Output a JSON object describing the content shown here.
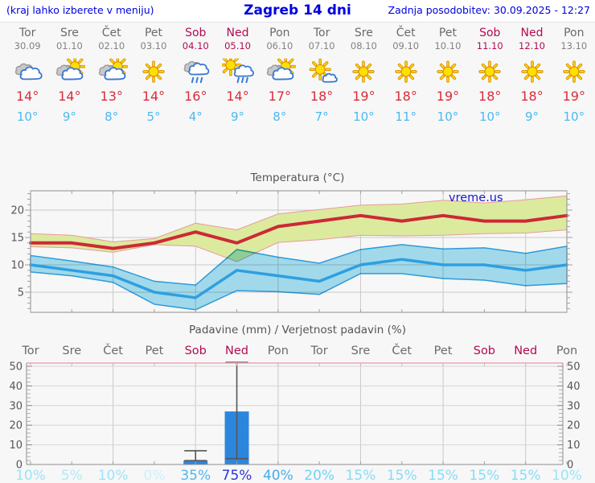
{
  "header": {
    "left_note": "(kraj lahko izberete v meniju)",
    "title": "Zagreb 14 dni",
    "updated": "Zadnja posodobitev: 30.09.2025 - 12:27"
  },
  "days": [
    {
      "name": "Tor",
      "date": "30.09",
      "weekend": false,
      "icon": "cloudy",
      "tmax_label": "14°",
      "tmin_label": "10°",
      "precip_pct_label": "10%"
    },
    {
      "name": "Sre",
      "date": "01.10",
      "weekend": false,
      "icon": "partly-cloudy",
      "tmax_label": "14°",
      "tmin_label": "9°",
      "precip_pct_label": "5%"
    },
    {
      "name": "Čet",
      "date": "02.10",
      "weekend": false,
      "icon": "partly-cloudy",
      "tmax_label": "13°",
      "tmin_label": "8°",
      "precip_pct_label": "10%"
    },
    {
      "name": "Pet",
      "date": "03.10",
      "weekend": false,
      "icon": "sunny",
      "tmax_label": "14°",
      "tmin_label": "5°",
      "precip_pct_label": "0%"
    },
    {
      "name": "Sob",
      "date": "04.10",
      "weekend": true,
      "icon": "rain",
      "tmax_label": "16°",
      "tmin_label": "4°",
      "precip_pct_label": "35%"
    },
    {
      "name": "Ned",
      "date": "05.10",
      "weekend": true,
      "icon": "sun-rain",
      "tmax_label": "14°",
      "tmin_label": "9°",
      "precip_pct_label": "75%"
    },
    {
      "name": "Pon",
      "date": "06.10",
      "weekend": false,
      "icon": "partly-cloudy",
      "tmax_label": "17°",
      "tmin_label": "8°",
      "precip_pct_label": "40%"
    },
    {
      "name": "Tor",
      "date": "07.10",
      "weekend": false,
      "icon": "mostly-sunny",
      "tmax_label": "18°",
      "tmin_label": "7°",
      "precip_pct_label": "20%"
    },
    {
      "name": "Sre",
      "date": "08.10",
      "weekend": false,
      "icon": "sunny",
      "tmax_label": "19°",
      "tmin_label": "10°",
      "precip_pct_label": "15%"
    },
    {
      "name": "Čet",
      "date": "09.10",
      "weekend": false,
      "icon": "sunny",
      "tmax_label": "18°",
      "tmin_label": "11°",
      "precip_pct_label": "15%"
    },
    {
      "name": "Pet",
      "date": "10.10",
      "weekend": false,
      "icon": "sunny",
      "tmax_label": "19°",
      "tmin_label": "10°",
      "precip_pct_label": "15%"
    },
    {
      "name": "Sob",
      "date": "11.10",
      "weekend": true,
      "icon": "sunny",
      "tmax_label": "18°",
      "tmin_label": "10°",
      "precip_pct_label": "15%"
    },
    {
      "name": "Ned",
      "date": "12.10",
      "weekend": true,
      "icon": "sunny",
      "tmax_label": "18°",
      "tmin_label": "9°",
      "precip_pct_label": "15%"
    },
    {
      "name": "Pon",
      "date": "13.10",
      "weekend": false,
      "icon": "sunny",
      "tmax_label": "19°",
      "tmin_label": "10°",
      "precip_pct_label": "10%"
    }
  ],
  "chart_data": [
    {
      "type": "line",
      "title": "Temperatura (°C)",
      "watermark": "vreme.us",
      "categories": [
        "30.09",
        "01.10",
        "02.10",
        "03.10",
        "04.10",
        "05.10",
        "06.10",
        "07.10",
        "08.10",
        "09.10",
        "10.10",
        "11.10",
        "12.10",
        "13.10"
      ],
      "series": [
        {
          "name": "max-temp",
          "values": [
            14,
            14,
            13,
            14,
            16,
            14,
            17,
            18,
            19,
            18,
            19,
            18,
            18,
            19
          ]
        },
        {
          "name": "max-temp-range-high",
          "values": [
            15.7,
            15.4,
            14.2,
            14.8,
            17.6,
            16.4,
            19.3,
            20.1,
            20.9,
            21.1,
            21.8,
            21.3,
            21.9,
            22.6
          ]
        },
        {
          "name": "max-temp-range-low",
          "values": [
            13.3,
            13.1,
            12.3,
            13.7,
            13.4,
            10.6,
            14.1,
            14.6,
            15.4,
            15.3,
            15.4,
            15.7,
            15.8,
            16.4
          ]
        },
        {
          "name": "min-temp",
          "values": [
            10,
            9,
            8,
            5,
            4,
            9,
            8,
            7,
            10,
            11,
            10,
            10,
            9,
            10
          ]
        },
        {
          "name": "min-temp-range-high",
          "values": [
            11.7,
            10.7,
            9.6,
            7.0,
            6.3,
            12.8,
            11.4,
            10.3,
            12.8,
            13.7,
            12.9,
            13.1,
            12.1,
            13.4
          ]
        },
        {
          "name": "min-temp-range-low",
          "values": [
            8.7,
            8.0,
            6.8,
            2.8,
            1.8,
            5.3,
            5.1,
            4.6,
            8.4,
            8.4,
            7.5,
            7.2,
            6.2,
            6.6
          ]
        }
      ],
      "yticks": [
        5,
        10,
        15,
        20
      ],
      "ylim": [
        1.3,
        23.5
      ],
      "grid": true,
      "legend": "none"
    },
    {
      "type": "bar",
      "title": "Padavine (mm) / Verjetnost padavin (%)",
      "categories": [
        "Tor",
        "Sre",
        "Čet",
        "Pet",
        "Sob",
        "Ned",
        "Pon",
        "Tor",
        "Sre",
        "Čet",
        "Pet",
        "Sob",
        "Ned",
        "Pon"
      ],
      "weekend_indices": [
        4,
        5,
        11,
        12
      ],
      "values": [
        0,
        0,
        0,
        0,
        2,
        27,
        0,
        0,
        0,
        0,
        0,
        0,
        0,
        0
      ],
      "whiskers": [
        {
          "index": 4,
          "low": 2,
          "high": 7
        },
        {
          "index": 5,
          "low": 3,
          "high": 52
        }
      ],
      "probability_pct": [
        10,
        5,
        10,
        0,
        35,
        75,
        40,
        20,
        15,
        15,
        15,
        15,
        15,
        10
      ],
      "yticks": [
        0,
        10,
        20,
        30,
        40,
        50
      ],
      "ylim": [
        0,
        51.5
      ],
      "grid": true,
      "ylabel_left_and_right": true
    }
  ],
  "colors": {
    "header_text": "#0000e0",
    "weekday_text": "#6a6a6a",
    "weekend_text": "#b30a53",
    "date_text": "#828282",
    "tmax_text": "#da2c3a",
    "tmin_text": "#4cb9f0",
    "max_line": "#cc2936",
    "max_band": "#dcea9e",
    "max_band_edge": "#e89a9a",
    "min_line": "#2e9fe1",
    "min_band": "#a6e0f2",
    "bar_blue": "#2c86dd",
    "whisker": "#555555",
    "grid": "#c9c9c9",
    "axis": "#8c8c8c",
    "axis_label": "#555555",
    "plot_top_pink": "#f0a2ba",
    "watermark_blue": "#1717cf",
    "pct_colors": {
      "0": "#cdf1fb",
      "5": "#b0e9f8",
      "10": "#9ce4f7",
      "15": "#87dcf5",
      "20": "#70d2f3",
      "35": "#54b6ec",
      "40": "#47adeb",
      "75": "#2d35da"
    }
  }
}
